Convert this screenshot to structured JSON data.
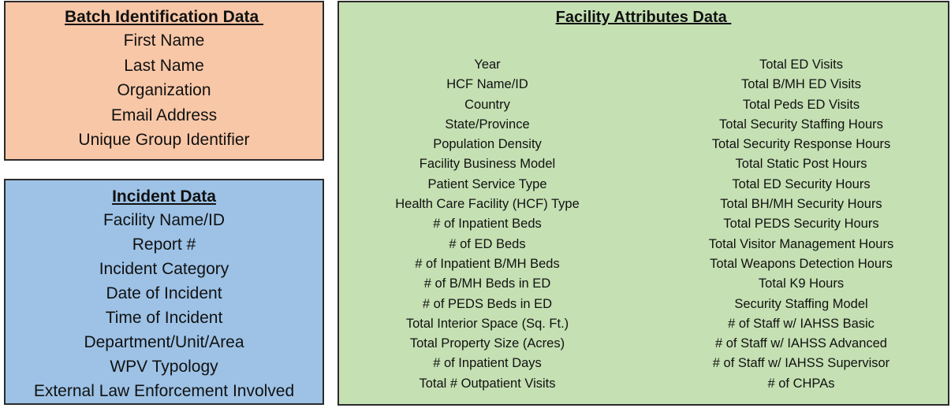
{
  "batch": {
    "title": "Batch Identification Data ",
    "items": [
      "First Name",
      "Last Name",
      "Organization",
      "Email Address",
      "Unique Group Identifier"
    ]
  },
  "incident": {
    "title": "Incident Data",
    "items": [
      "Facility Name/ID",
      "Report #",
      "Incident Category",
      "Date of Incident",
      "Time of Incident",
      "Department/Unit/Area",
      "WPV Typology",
      "External Law Enforcement Involved"
    ]
  },
  "facility": {
    "title": "Facility Attributes Data ",
    "left_items": [
      "Year",
      "HCF Name/ID",
      "Country",
      "State/Province",
      "Population Density",
      "Facility Business Model",
      "Patient Service Type",
      "Health Care Facility (HCF) Type",
      "# of Inpatient Beds",
      "# of ED Beds",
      "# of Inpatient B/MH Beds",
      "# of B/MH Beds in ED",
      "# of PEDS Beds in ED",
      "Total Interior Space (Sq. Ft.)",
      "Total Property Size (Acres)",
      "# of Inpatient Days",
      "Total # Outpatient Visits"
    ],
    "right_items": [
      "Total ED Visits",
      "Total B/MH ED Visits",
      "Total Peds ED Visits",
      "Total Security Staffing Hours",
      "Total Security Response Hours",
      "Total Static Post Hours",
      "Total ED Security Hours",
      "Total BH/MH Security Hours",
      "Total PEDS Security Hours",
      "Total Visitor Management Hours",
      "Total Weapons Detection Hours",
      "Total K9 Hours",
      "Security Staffing Model",
      "# of Staff w/ IAHSS Basic",
      "# of Staff w/ IAHSS Advanced",
      "# of Staff w/ IAHSS Supervisor",
      "# of CHPAs"
    ]
  },
  "colors": {
    "batch_bg": "#f8c7a7",
    "incident_bg": "#9dc2e6",
    "facility_bg": "#c5e0b3",
    "border": "#2b2b2b"
  }
}
